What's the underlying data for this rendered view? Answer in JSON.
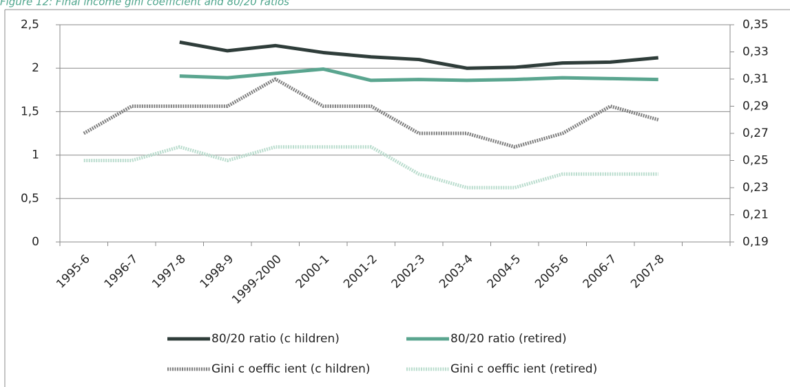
{
  "chart_data": {
    "type": "line",
    "title": "Figure 12: Final income gini coefficient and 80/20 ratios",
    "categories": [
      "1995-6",
      "1996-7",
      "1997-8",
      "1998-9",
      "1999-2000",
      "2000-1",
      "2001-2",
      "2002-3",
      "2003-4",
      "2004-5",
      "2005-6",
      "2006-7",
      "2007-8",
      null
    ],
    "ylim": [
      0,
      2.5
    ],
    "yticks": [
      0,
      {
        "value": 0.5,
        "label": "0,5"
      },
      1,
      {
        "value": 1.5,
        "label": "1,5"
      },
      2,
      {
        "value": 2.5,
        "label": "2,5"
      }
    ],
    "y2lim": [
      0.19,
      0.35
    ],
    "y2ticks": [
      {
        "value": 0.19,
        "label": "0,19"
      },
      {
        "value": 0.21,
        "label": "0,21"
      },
      {
        "value": 0.23,
        "label": "0,23"
      },
      {
        "value": 0.25,
        "label": "0,25"
      },
      {
        "value": 0.27,
        "label": "0,27"
      },
      {
        "value": 0.29,
        "label": "0,29"
      },
      {
        "value": 0.31,
        "label": "0,31"
      },
      {
        "value": 0.33,
        "label": "0,33"
      },
      {
        "value": 0.35,
        "label": "0,35"
      }
    ],
    "grid": true,
    "legend": "bottom",
    "series": [
      {
        "name": "80/20 ratio (c hildren)",
        "color": "#2f3d3a",
        "values": [
          null,
          null,
          2.3,
          2.2,
          2.26,
          2.18,
          2.13,
          2.1,
          2.0,
          2.01,
          2.06,
          2.07,
          2.12,
          null
        ]
      },
      {
        "name": "80/20 ratio (retired)",
        "color": "#5aa58f",
        "values": [
          null,
          null,
          1.91,
          1.89,
          1.94,
          1.99,
          1.86,
          1.87,
          1.86,
          1.87,
          1.89,
          1.88,
          1.87,
          null
        ]
      },
      {
        "name": "Gini c oeffic ient (c hildren)",
        "color": "#7d7d7d",
        "axis": "y2",
        "values": [
          0.27,
          0.29,
          0.29,
          0.29,
          0.31,
          0.29,
          0.29,
          0.27,
          0.27,
          0.26,
          0.27,
          0.29,
          0.28,
          null
        ]
      },
      {
        "name": "Gini c oeffic ient (retired)",
        "color": "#b9dccd",
        "axis": "y2",
        "values": [
          0.25,
          0.25,
          0.26,
          0.25,
          0.26,
          0.26,
          0.26,
          0.24,
          0.23,
          0.23,
          0.24,
          0.24,
          0.24,
          null
        ]
      }
    ]
  }
}
